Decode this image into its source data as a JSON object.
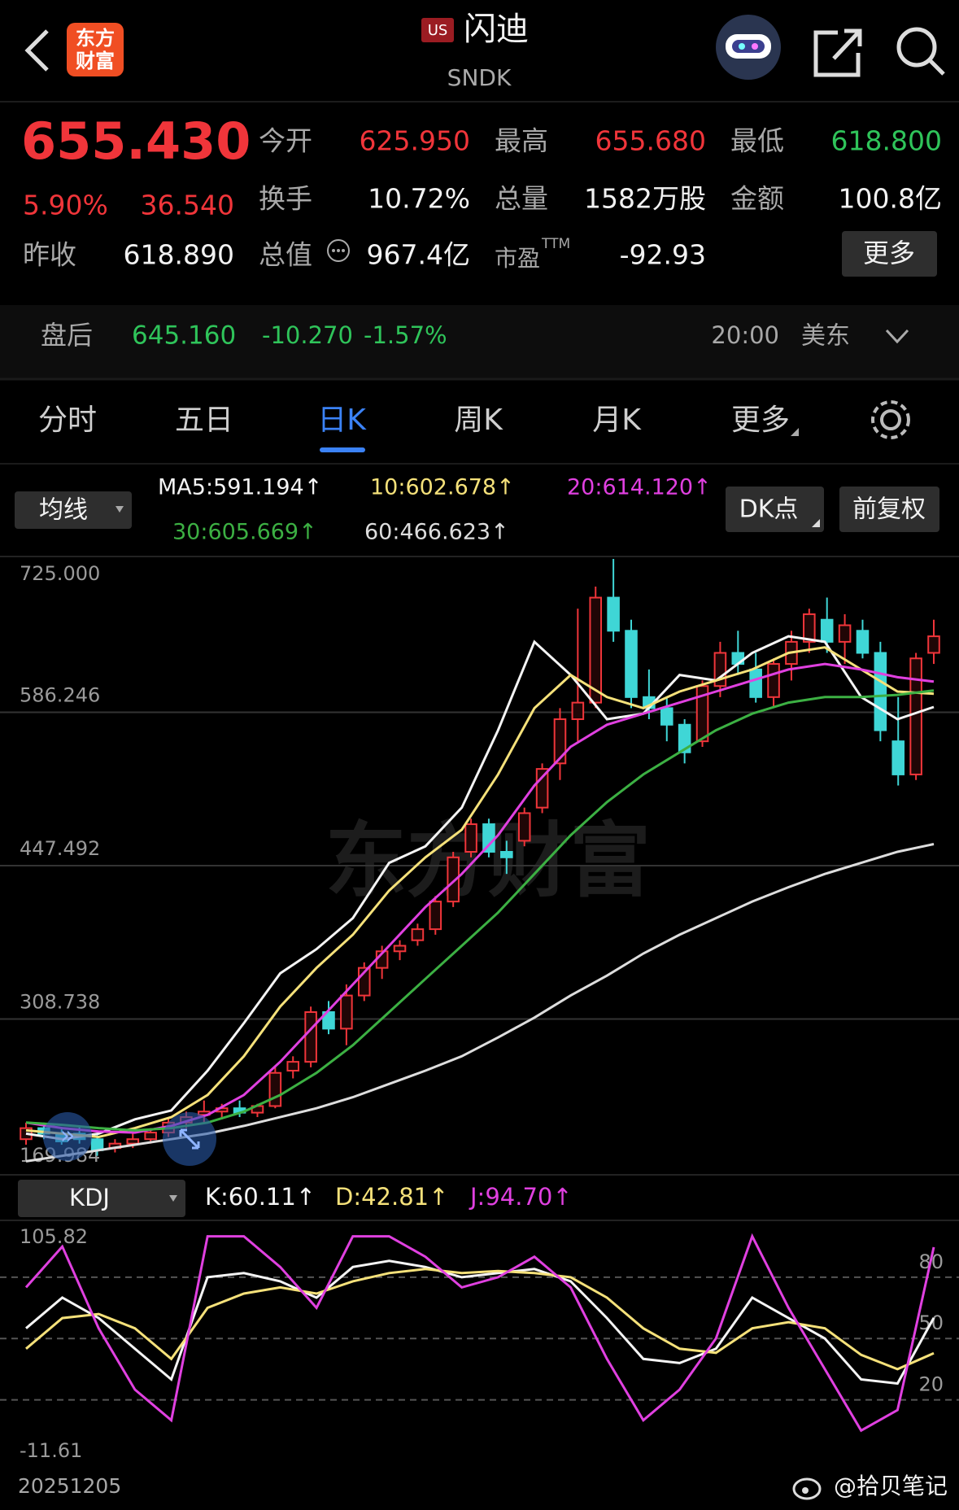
{
  "header": {
    "logo_top": "东方",
    "logo_bottom": "财富",
    "market": "US",
    "name": "闪迪",
    "symbol": "SNDK"
  },
  "quote": {
    "price": "655.430",
    "change_pct": "5.90%",
    "change": "36.540",
    "prev_close_label": "昨收",
    "prev_close": "618.890",
    "open_label": "今开",
    "open": "625.950",
    "high_label": "最高",
    "high": "655.680",
    "low_label": "最低",
    "low": "618.800",
    "turnover_label": "换手",
    "turnover": "10.72%",
    "volume_label": "总量",
    "volume": "1582万股",
    "amount_label": "金额",
    "amount": "100.8亿",
    "mcap_label": "总值",
    "mcap": "967.4亿",
    "pe_label": "市盈",
    "pe_sup": "TTM",
    "pe": "-92.93",
    "more": "更多"
  },
  "after_hours": {
    "label": "盘后",
    "price": "645.160",
    "change": "-10.270",
    "pct": "-1.57%",
    "time": "20:00",
    "zone": "美东"
  },
  "tabs": [
    "分时",
    "五日",
    "日K",
    "周K",
    "月K",
    "更多"
  ],
  "indicators": {
    "selector": "均线",
    "ma5": "MA5:591.194↑",
    "ma10": "10:602.678↑",
    "ma20": "20:614.120↑",
    "ma30": "30:605.669↑",
    "ma60": "60:466.623↑",
    "dk": "DK点",
    "adjust": "前复权"
  },
  "watermark": "东方财富",
  "chart_data": [
    {
      "type": "candlestick",
      "up_color": "#f0353a",
      "down_color": "#3fd6d6",
      "ylim": [
        169.984,
        725
      ],
      "yticks": [
        {
          "value": 169.984,
          "label": "169.984"
        },
        {
          "value": 308.738,
          "label": "308.738"
        },
        {
          "value": 447.492,
          "label": "447.492"
        },
        {
          "value": 586.246,
          "label": "586.246"
        },
        {
          "value": 725,
          "label": "725.000"
        }
      ],
      "grid": true,
      "open": [
        200,
        210,
        205,
        205,
        200,
        192,
        196,
        200,
        206,
        215,
        222,
        225,
        228,
        224,
        230,
        262,
        270,
        315,
        300,
        330,
        355,
        370,
        380,
        390,
        415,
        460,
        485,
        460,
        470,
        500,
        540,
        580,
        595,
        690,
        660,
        600,
        590,
        575,
        560,
        610,
        640,
        625,
        600,
        630,
        650,
        670,
        650,
        660,
        640,
        560,
        530,
        640
      ],
      "high": [
        215,
        215,
        210,
        212,
        205,
        200,
        205,
        210,
        220,
        225,
        235,
        232,
        235,
        232,
        265,
        275,
        320,
        325,
        340,
        360,
        375,
        380,
        395,
        420,
        460,
        490,
        490,
        470,
        500,
        540,
        590,
        680,
        700,
        725,
        670,
        625,
        600,
        580,
        615,
        650,
        660,
        640,
        635,
        660,
        680,
        690,
        675,
        670,
        650,
        600,
        640,
        670
      ],
      "low": [
        195,
        200,
        195,
        196,
        185,
        188,
        192,
        196,
        202,
        210,
        215,
        218,
        220,
        220,
        228,
        255,
        265,
        295,
        285,
        325,
        345,
        362,
        375,
        385,
        410,
        455,
        455,
        440,
        465,
        495,
        525,
        560,
        590,
        650,
        590,
        580,
        560,
        540,
        555,
        600,
        620,
        595,
        590,
        615,
        640,
        640,
        630,
        635,
        560,
        520,
        525,
        630
      ],
      "close": [
        210,
        205,
        198,
        200,
        190,
        196,
        200,
        206,
        215,
        220,
        225,
        228,
        224,
        230,
        260,
        270,
        315,
        300,
        330,
        355,
        370,
        375,
        390,
        415,
        455,
        485,
        460,
        455,
        495,
        535,
        580,
        595,
        690,
        660,
        600,
        590,
        575,
        550,
        610,
        640,
        630,
        600,
        630,
        650,
        675,
        650,
        665,
        640,
        570,
        530,
        635,
        655
      ],
      "series": [
        {
          "color": "#f4f4f4",
          "values": [
            205,
            200,
            205,
            218,
            226,
            262,
            305,
            350,
            372,
            400,
            450,
            465,
            500,
            570,
            650,
            620,
            580,
            585,
            620,
            615,
            640,
            655,
            650,
            600,
            580,
            591
          ]
        },
        {
          "color": "#f5e17a",
          "values": [
            208,
            205,
            202,
            210,
            220,
            240,
            275,
            320,
            355,
            385,
            425,
            455,
            480,
            530,
            590,
            620,
            600,
            590,
            605,
            615,
            625,
            640,
            645,
            625,
            605,
            603
          ]
        },
        {
          "color": "#e040e0",
          "values": [
            215,
            210,
            207,
            206,
            212,
            222,
            240,
            270,
            305,
            340,
            375,
            410,
            440,
            475,
            520,
            555,
            575,
            585,
            595,
            605,
            615,
            625,
            630,
            625,
            618,
            614
          ]
        },
        {
          "color": "#3cb043",
          "values": [
            215,
            213,
            210,
            208,
            210,
            215,
            225,
            240,
            260,
            285,
            315,
            345,
            375,
            405,
            440,
            475,
            505,
            530,
            550,
            570,
            585,
            595,
            600,
            600,
            602,
            606
          ]
        },
        {
          "color": "#dddddd",
          "values": [
            180,
            185,
            190,
            195,
            200,
            205,
            212,
            220,
            228,
            238,
            250,
            262,
            275,
            292,
            310,
            330,
            348,
            368,
            385,
            400,
            415,
            428,
            440,
            450,
            460,
            467
          ]
        }
      ]
    },
    {
      "type": "line",
      "selector": "KDJ",
      "k_label": "K:60.11↑",
      "d_label": "D:42.81↑",
      "j_label": "J:94.70↑",
      "ylim": [
        -11.61,
        105.82
      ],
      "yticks": [
        -11.61,
        20,
        50,
        80,
        105.82
      ],
      "x_label": "20251205",
      "series": [
        {
          "color": "#f4f4f4",
          "values": [
            55,
            70,
            60,
            45,
            30,
            80,
            82,
            78,
            70,
            85,
            88,
            85,
            80,
            82,
            84,
            78,
            60,
            40,
            38,
            45,
            70,
            60,
            50,
            30,
            28,
            60.11
          ]
        },
        {
          "color": "#f5e17a",
          "values": [
            45,
            60,
            62,
            55,
            40,
            65,
            72,
            75,
            72,
            78,
            82,
            84,
            82,
            83,
            82,
            80,
            70,
            55,
            45,
            43,
            55,
            58,
            55,
            42,
            35,
            42.81
          ]
        },
        {
          "color": "#e040e0",
          "values": [
            75,
            95,
            55,
            25,
            10,
            100,
            100,
            85,
            65,
            100,
            100,
            90,
            75,
            80,
            90,
            75,
            40,
            10,
            25,
            50,
            100,
            65,
            35,
            5,
            15,
            94.7
          ]
        }
      ]
    }
  ],
  "footer": {
    "credit": "@拾贝笔记"
  }
}
